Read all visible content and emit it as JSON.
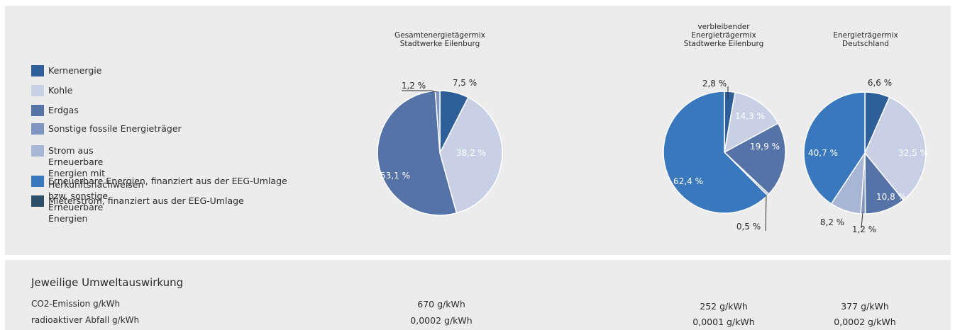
{
  "colors": {
    "kernenergie": "#2f5f98",
    "kohle": "#c7d0e4",
    "erdgas": "#5673a8",
    "sonstige_fossile": "#7f94c0",
    "strom_herkunft": "#a7b6d5",
    "eeg": "#3a78bd",
    "mieterstrom": "#2c4e68"
  },
  "legend": [
    {
      "label": "Kernenergie",
      "color": "#2f5f98"
    },
    {
      "label": "Kohle",
      "color": "#c7d0e4"
    },
    {
      "label": "Erdgas",
      "color": "#5673a8"
    },
    {
      "label": "Sonstige fossile Energieträger",
      "color": "#7f94c0"
    },
    {
      "label": "Strom aus Erneuerbare Energien mit Herkunftsnachweisen\nbzw. sonstige Erneuerbare Energien",
      "color": "#a7b6d5"
    },
    {
      "label": "Erneuerbare Energien, finanziert aus der EEG-Umlage",
      "color": "#3a78bd"
    },
    {
      "label": "Mieterstrom, finanziert aus der EEG-Umlage",
      "color": "#2c4e68"
    }
  ],
  "chart_data": [
    {
      "type": "pie",
      "title": "Gesamtenergietägermix\nStadtwerke Eilenburg",
      "slices": [
        {
          "label": "Kernenergie",
          "value": 7.5,
          "text": "7,5 %",
          "color": "#2f5f98"
        },
        {
          "label": "Kohle",
          "value": 38.2,
          "text": "38,2 %",
          "color": "#c7d0e4"
        },
        {
          "label": "Erdgas",
          "value": 53.1,
          "text": "53,1 %",
          "color": "#5673a8"
        },
        {
          "label": "Sonstige fossile Energieträger",
          "value": 1.2,
          "text": "1,2 %",
          "color": "#7f94c0"
        }
      ]
    },
    {
      "type": "pie",
      "title": "verbleibender\nEnergieträgermix\nStadtwerke Eilenburg",
      "slices": [
        {
          "label": "Kernenergie",
          "value": 2.8,
          "text": "2,8 %",
          "color": "#2f5f98"
        },
        {
          "label": "Kohle",
          "value": 14.3,
          "text": "14,3 %",
          "color": "#c7d0e4"
        },
        {
          "label": "Erdgas",
          "value": 19.9,
          "text": "19,9 %",
          "color": "#5673a8"
        },
        {
          "label": "Sonstige fossile Energieträger",
          "value": 0.5,
          "text": "0,5 %",
          "color": "#7f94c0"
        },
        {
          "label": "Erneuerbare Energien, finanziert aus der EEG-Umlage",
          "value": 62.4,
          "text": "62,4 %",
          "color": "#3a78bd"
        }
      ]
    },
    {
      "type": "pie",
      "title": "Energieträgermix\nDeutschland",
      "slices": [
        {
          "label": "Kernenergie",
          "value": 6.6,
          "text": "6,6 %",
          "color": "#2f5f98"
        },
        {
          "label": "Kohle",
          "value": 32.5,
          "text": "32,5 %",
          "color": "#c7d0e4"
        },
        {
          "label": "Erdgas",
          "value": 10.8,
          "text": "10,8 %",
          "color": "#5673a8"
        },
        {
          "label": "Sonstige fossile Energieträger",
          "value": 1.2,
          "text": "1,2 %",
          "color": "#7f94c0"
        },
        {
          "label": "Strom aus Erneuerbare Energien mit Herkunftsnachweisen bzw. sonstige Erneuerbare Energien",
          "value": 8.2,
          "text": "8,2 %",
          "color": "#a7b6d5"
        },
        {
          "label": "Erneuerbare Energien, finanziert aus der EEG-Umlage",
          "value": 40.7,
          "text": "40,7 %",
          "color": "#3a78bd"
        }
      ]
    }
  ],
  "impact": {
    "title": "Jeweilige Umweltauswirkung",
    "co2_label": "CO2-Emission g/kWh",
    "waste_label": "radioaktiver Abfall g/kWh",
    "values": [
      {
        "co2": "670 g/kWh",
        "waste": "0,0002 g/kWh"
      },
      {
        "co2": "252 g/kWh",
        "waste": "0,0001 g/kWh"
      },
      {
        "co2": "377 g/kWh",
        "waste": "0,0002 g/kWh"
      }
    ]
  }
}
